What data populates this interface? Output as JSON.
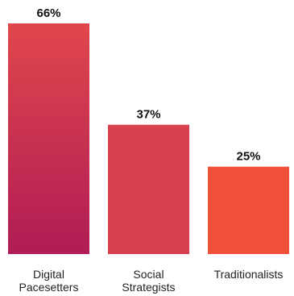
{
  "chart_data": {
    "type": "bar",
    "categories": [
      [
        "Digital",
        "Pacesetters"
      ],
      [
        "Social",
        "Strategists"
      ],
      [
        "Traditionalists"
      ]
    ],
    "values": [
      66,
      37,
      25
    ],
    "value_labels": [
      "66%",
      "37%",
      "25%"
    ],
    "unit": "%",
    "title": "",
    "xlabel": "",
    "ylabel": "",
    "ylim": [
      0,
      66
    ],
    "grid": false,
    "legend": "none",
    "colors": {
      "bar_1_top": "#e0474c",
      "bar_1_bottom": "#b01c55",
      "bar_2": "#d9404d",
      "bar_3": "#f0503a"
    }
  }
}
